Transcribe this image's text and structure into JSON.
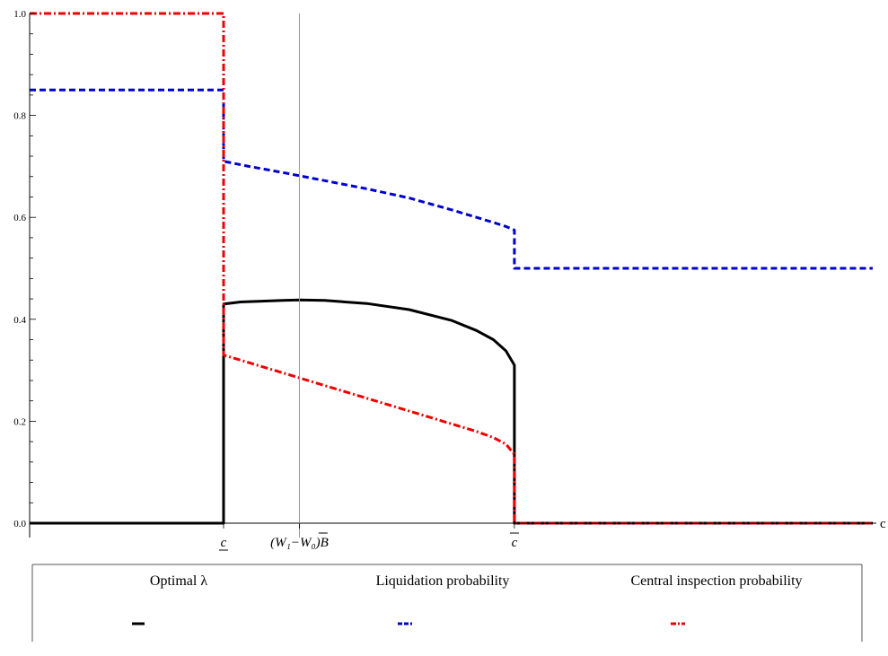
{
  "chart_data": {
    "type": "line",
    "title": "",
    "xlabel": "c",
    "ylabel": "",
    "xlim": [
      0,
      10
    ],
    "ylim": [
      0,
      1.0
    ],
    "y_ticks": [
      "0.0",
      "0.2",
      "0.4",
      "0.6",
      "0.8",
      "1.0"
    ],
    "x_special_labels": [
      {
        "x": 2.3,
        "label": "c",
        "decoration": "underline"
      },
      {
        "x": 3.2,
        "label": "(W₁−W₀)B",
        "decoration": "overline-B"
      },
      {
        "x": 5.75,
        "label": "c",
        "decoration": "overline"
      }
    ],
    "reference_vline_x": 3.2,
    "grid": false,
    "legend_position": "bottom",
    "series": [
      {
        "name": "Optimal λ",
        "color": "#000000",
        "style": "solid",
        "x": [
          0,
          2.3,
          2.3,
          2.5,
          3.0,
          3.2,
          3.5,
          4.0,
          4.5,
          5.0,
          5.3,
          5.5,
          5.65,
          5.75,
          5.75,
          10
        ],
        "y": [
          0,
          0,
          0.43,
          0.434,
          0.437,
          0.438,
          0.437,
          0.431,
          0.419,
          0.398,
          0.378,
          0.36,
          0.338,
          0.31,
          0,
          0
        ]
      },
      {
        "name": "Liquidation probability",
        "color": "#0000cc",
        "style": "dashed",
        "x": [
          0,
          2.3,
          2.3,
          2.6,
          3.0,
          3.5,
          4.0,
          4.5,
          5.0,
          5.3,
          5.5,
          5.65,
          5.75,
          5.75,
          10
        ],
        "y": [
          0.85,
          0.85,
          0.71,
          0.7,
          0.688,
          0.672,
          0.656,
          0.638,
          0.615,
          0.6,
          0.59,
          0.582,
          0.575,
          0.5,
          0.5
        ]
      },
      {
        "name": "Central inspection  probability",
        "color": "#ee0000",
        "style": "dashdot",
        "x": [
          0,
          2.3,
          2.3,
          2.6,
          3.0,
          3.5,
          4.0,
          4.5,
          5.0,
          5.3,
          5.5,
          5.65,
          5.75,
          5.75,
          10
        ],
        "y": [
          1.0,
          1.0,
          0.33,
          0.315,
          0.295,
          0.27,
          0.245,
          0.22,
          0.195,
          0.18,
          0.168,
          0.155,
          0.135,
          0,
          0
        ]
      }
    ]
  }
}
